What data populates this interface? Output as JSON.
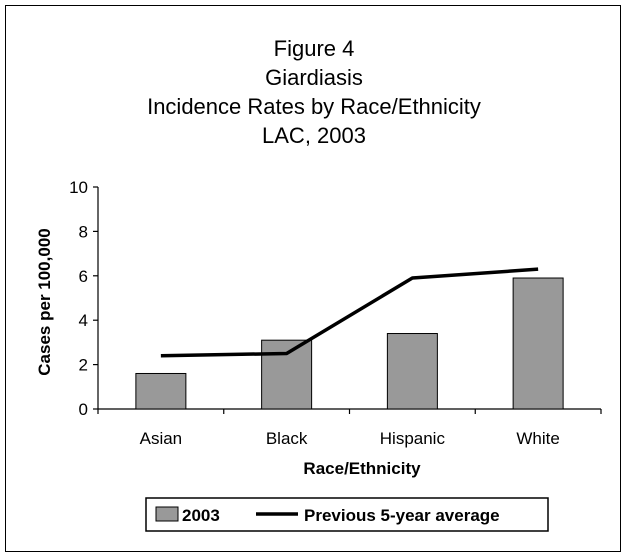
{
  "chart_data": {
    "type": "bar",
    "title_lines": [
      "Figure 4",
      "Giardiasis",
      "Incidence Rates by Race/Ethnicity",
      "LAC, 2003"
    ],
    "categories": [
      "Asian",
      "Black",
      "Hispanic",
      "White"
    ],
    "series": [
      {
        "name": "2003",
        "type": "bar",
        "values": [
          1.6,
          3.1,
          3.4,
          5.9
        ],
        "color": "#999999"
      },
      {
        "name": "Previous 5-year average",
        "type": "line",
        "values": [
          2.4,
          2.5,
          5.9,
          6.3
        ],
        "color": "#000000"
      }
    ],
    "xlabel": "Race/Ethnicity",
    "ylabel": "Cases per 100,000",
    "ylim": [
      0,
      10
    ],
    "yticks": [
      0,
      2,
      4,
      6,
      8,
      10
    ],
    "grid": false,
    "legend_position": "bottom"
  }
}
